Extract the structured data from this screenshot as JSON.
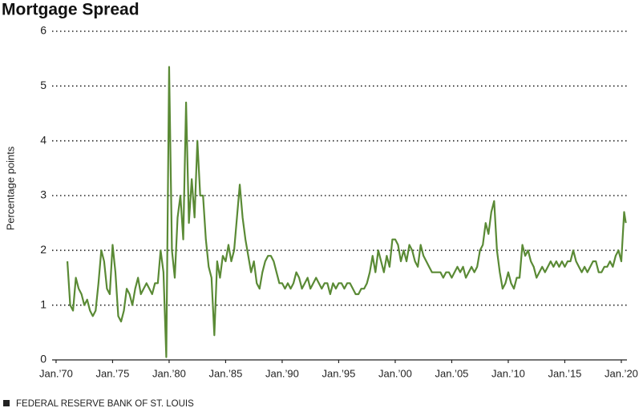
{
  "chart_data": {
    "type": "line",
    "title": "Mortgage Spread",
    "y_label": "Percentage points",
    "source": "FEDERAL RESERVE BANK OF ST. LOUIS",
    "x": [
      1971,
      1971.25,
      1971.5,
      1971.75,
      1972,
      1972.25,
      1972.5,
      1972.75,
      1973,
      1973.25,
      1973.5,
      1973.75,
      1974,
      1974.25,
      1974.5,
      1974.75,
      1975,
      1975.25,
      1975.5,
      1975.75,
      1976,
      1976.25,
      1976.5,
      1976.75,
      1977,
      1977.25,
      1977.5,
      1977.75,
      1978,
      1978.25,
      1978.5,
      1978.75,
      1979,
      1979.25,
      1979.5,
      1979.75,
      1980,
      1980.25,
      1980.5,
      1980.75,
      1981,
      1981.25,
      1981.5,
      1981.75,
      1982,
      1982.25,
      1982.5,
      1982.75,
      1983,
      1983.25,
      1983.5,
      1983.75,
      1984,
      1984.25,
      1984.5,
      1984.75,
      1985,
      1985.25,
      1985.5,
      1985.75,
      1986,
      1986.25,
      1986.5,
      1986.75,
      1987,
      1987.25,
      1987.5,
      1987.75,
      1988,
      1988.25,
      1988.5,
      1988.75,
      1989,
      1989.25,
      1989.5,
      1989.75,
      1990,
      1990.25,
      1990.5,
      1990.75,
      1991,
      1991.25,
      1991.5,
      1991.75,
      1992,
      1992.25,
      1992.5,
      1992.75,
      1993,
      1993.25,
      1993.5,
      1993.75,
      1994,
      1994.25,
      1994.5,
      1994.75,
      1995,
      1995.25,
      1995.5,
      1995.75,
      1996,
      1996.25,
      1996.5,
      1996.75,
      1997,
      1997.25,
      1997.5,
      1997.75,
      1998,
      1998.25,
      1998.5,
      1998.75,
      1999,
      1999.25,
      1999.5,
      1999.75,
      2000,
      2000.25,
      2000.5,
      2000.75,
      2001,
      2001.25,
      2001.5,
      2001.75,
      2002,
      2002.25,
      2002.5,
      2002.75,
      2003,
      2003.25,
      2003.5,
      2003.75,
      2004,
      2004.25,
      2004.5,
      2004.75,
      2005,
      2005.25,
      2005.5,
      2005.75,
      2006,
      2006.25,
      2006.5,
      2006.75,
      2007,
      2007.25,
      2007.5,
      2007.75,
      2008,
      2008.25,
      2008.5,
      2008.75,
      2009,
      2009.25,
      2009.5,
      2009.75,
      2010,
      2010.25,
      2010.5,
      2010.75,
      2011,
      2011.25,
      2011.5,
      2011.75,
      2012,
      2012.25,
      2012.5,
      2012.75,
      2013,
      2013.25,
      2013.5,
      2013.75,
      2014,
      2014.25,
      2014.5,
      2014.75,
      2015,
      2015.25,
      2015.5,
      2015.75,
      2016,
      2016.25,
      2016.5,
      2016.75,
      2017,
      2017.25,
      2017.5,
      2017.75,
      2018,
      2018.25,
      2018.5,
      2018.75,
      2019,
      2019.25,
      2019.5,
      2019.75,
      2020,
      2020.25,
      2020.4
    ],
    "series": [
      {
        "name": "Mortgage Spread",
        "color": "#5a8a35",
        "values": [
          1.8,
          1.0,
          0.9,
          1.5,
          1.3,
          1.2,
          1.0,
          1.1,
          0.9,
          0.8,
          0.9,
          1.4,
          2.0,
          1.8,
          1.3,
          1.2,
          2.1,
          1.6,
          0.8,
          0.7,
          0.9,
          1.3,
          1.2,
          1.0,
          1.3,
          1.5,
          1.2,
          1.3,
          1.4,
          1.3,
          1.2,
          1.4,
          1.4,
          2.0,
          1.6,
          0.05,
          5.35,
          2.0,
          1.5,
          2.6,
          3.0,
          2.2,
          4.7,
          2.5,
          3.3,
          2.6,
          4.0,
          3.0,
          3.0,
          2.2,
          1.7,
          1.5,
          0.45,
          1.8,
          1.5,
          1.9,
          1.8,
          2.1,
          1.8,
          2.0,
          2.6,
          3.2,
          2.6,
          2.2,
          1.9,
          1.6,
          1.8,
          1.4,
          1.3,
          1.6,
          1.8,
          1.9,
          1.9,
          1.8,
          1.6,
          1.4,
          1.4,
          1.3,
          1.4,
          1.3,
          1.4,
          1.6,
          1.5,
          1.3,
          1.4,
          1.5,
          1.3,
          1.4,
          1.5,
          1.4,
          1.3,
          1.4,
          1.4,
          1.2,
          1.4,
          1.3,
          1.4,
          1.4,
          1.3,
          1.4,
          1.4,
          1.3,
          1.2,
          1.2,
          1.3,
          1.3,
          1.4,
          1.6,
          1.9,
          1.6,
          2.0,
          1.8,
          1.6,
          1.9,
          1.7,
          2.2,
          2.2,
          2.1,
          1.8,
          2.0,
          1.8,
          2.1,
          2.0,
          1.8,
          1.7,
          2.1,
          1.9,
          1.8,
          1.7,
          1.6,
          1.6,
          1.6,
          1.6,
          1.5,
          1.6,
          1.6,
          1.5,
          1.6,
          1.7,
          1.6,
          1.7,
          1.5,
          1.6,
          1.7,
          1.6,
          1.7,
          2.0,
          2.1,
          2.5,
          2.3,
          2.7,
          2.9,
          2.0,
          1.6,
          1.3,
          1.4,
          1.6,
          1.4,
          1.3,
          1.5,
          1.5,
          2.1,
          1.9,
          2.0,
          1.8,
          1.7,
          1.5,
          1.6,
          1.7,
          1.6,
          1.7,
          1.8,
          1.7,
          1.8,
          1.7,
          1.8,
          1.7,
          1.8,
          1.8,
          2.0,
          1.8,
          1.7,
          1.6,
          1.7,
          1.6,
          1.7,
          1.8,
          1.8,
          1.6,
          1.6,
          1.7,
          1.7,
          1.8,
          1.7,
          1.9,
          2.0,
          1.8,
          2.7,
          2.5
        ]
      }
    ],
    "xlim": [
      1969.65,
      2020.5
    ],
    "xticks": [
      {
        "value": 1970,
        "label": "Jan.’70"
      },
      {
        "value": 1975,
        "label": "Jan.’75"
      },
      {
        "value": 1980,
        "label": "Jan.’80"
      },
      {
        "value": 1985,
        "label": "Jan.’85"
      },
      {
        "value": 1990,
        "label": "Jan.’90"
      },
      {
        "value": 1995,
        "label": "Jan.’95"
      },
      {
        "value": 2000,
        "label": "Jan.’00"
      },
      {
        "value": 2005,
        "label": "Jan.’05"
      },
      {
        "value": 2010,
        "label": "Jan.’10"
      },
      {
        "value": 2015,
        "label": "Jan.’15"
      },
      {
        "value": 2020,
        "label": "Jan.’20"
      }
    ],
    "ylim": [
      0,
      6
    ],
    "yticks": [
      0,
      1,
      2,
      3,
      4,
      5,
      6
    ],
    "grid": true
  }
}
